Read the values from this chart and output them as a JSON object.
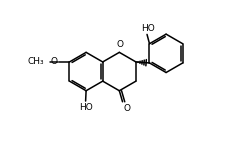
{
  "bg_color": "#ffffff",
  "line_color": "#000000",
  "line_width": 1.1,
  "font_size": 6.5,
  "figsize": [
    2.46,
    1.48
  ],
  "dpi": 100,
  "xlim": [
    0,
    10
  ],
  "ylim": [
    0,
    6
  ]
}
